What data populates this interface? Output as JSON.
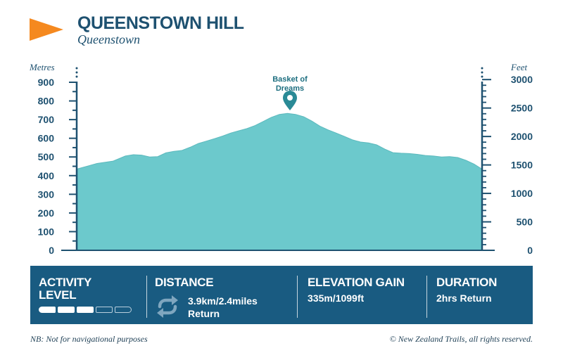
{
  "header": {
    "title": "QUEENSTOWN HILL",
    "subtitle": "Queenstown",
    "flag_icon": "orange-triangle-flag",
    "flag_color": "#f5891f"
  },
  "colors": {
    "navy": "#1e5170",
    "profile_fill": "#6cc9cc",
    "info_bar": "#195b81",
    "marker": "#2a8a96"
  },
  "chart_data": {
    "type": "area",
    "title": "",
    "ylabel": "Metres",
    "ylabel_right": "Feet",
    "ylim": [
      0,
      900
    ],
    "yticks": [
      0,
      100,
      200,
      300,
      400,
      500,
      600,
      700,
      800,
      900
    ],
    "yticks_right": [
      0,
      500,
      1000,
      1500,
      2000,
      2500,
      3000
    ],
    "grid": false,
    "x": [
      0,
      0.05,
      0.09,
      0.12,
      0.14,
      0.16,
      0.18,
      0.2,
      0.22,
      0.24,
      0.26,
      0.28,
      0.3,
      0.32,
      0.34,
      0.36,
      0.38,
      0.4,
      0.42,
      0.44,
      0.46,
      0.48,
      0.5,
      0.52,
      0.54,
      0.56,
      0.58,
      0.6,
      0.62,
      0.64,
      0.66,
      0.68,
      0.7,
      0.72,
      0.74,
      0.76,
      0.78,
      0.8,
      0.82,
      0.84,
      0.86,
      0.88,
      0.9,
      0.92,
      0.94,
      0.96,
      0.98,
      1
    ],
    "values": [
      435,
      465,
      478,
      505,
      512,
      510,
      500,
      502,
      522,
      530,
      535,
      552,
      572,
      585,
      598,
      612,
      628,
      640,
      652,
      668,
      690,
      712,
      728,
      733,
      728,
      715,
      692,
      665,
      645,
      628,
      610,
      592,
      580,
      575,
      565,
      542,
      523,
      520,
      518,
      514,
      508,
      505,
      500,
      502,
      497,
      482,
      462,
      435
    ],
    "annotations": [
      {
        "label": "Basket of Dreams",
        "x": 0.52,
        "y": 733
      }
    ]
  },
  "annotation_lines": [
    "Basket of",
    "Dreams"
  ],
  "info_bar": {
    "activity_level": {
      "heading_line1": "ACTIVITY",
      "heading_line2": "LEVEL",
      "level": 3,
      "max": 5
    },
    "distance": {
      "heading": "DISTANCE",
      "value_line1": "3.9km/2.4miles",
      "value_line2": "Return",
      "icon": "loop-return-icon"
    },
    "elevation_gain": {
      "heading": "ELEVATION GAIN",
      "value": "335m/1099ft"
    },
    "duration": {
      "heading": "DURATION",
      "value": "2hrs Return"
    }
  },
  "footer": {
    "left_note": "NB: Not for navigational purposes",
    "right_note": "© New Zealand Trails, all rights reserved."
  }
}
